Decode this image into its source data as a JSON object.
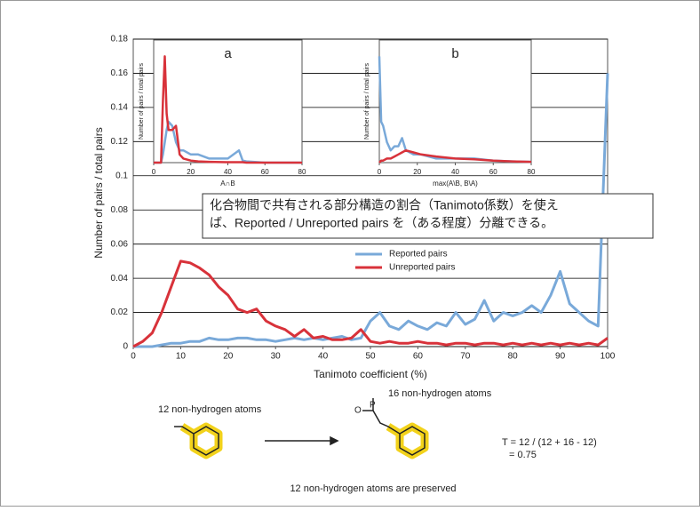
{
  "chart_data": [
    {
      "type": "line",
      "x": [
        0,
        2,
        4,
        6,
        8,
        10,
        12,
        14,
        16,
        18,
        20,
        22,
        24,
        26,
        28,
        30,
        32,
        34,
        36,
        38,
        40,
        42,
        44,
        46,
        48,
        50,
        52,
        54,
        56,
        58,
        60,
        62,
        64,
        66,
        68,
        70,
        72,
        74,
        76,
        78,
        80,
        82,
        84,
        86,
        88,
        90,
        92,
        94,
        96,
        98,
        100
      ],
      "series": [
        {
          "name": "Reported pairs",
          "color": "#79a9d9",
          "values": [
            0,
            0,
            0,
            0.001,
            0.002,
            0.002,
            0.003,
            0.003,
            0.005,
            0.004,
            0.004,
            0.005,
            0.005,
            0.004,
            0.004,
            0.003,
            0.004,
            0.005,
            0.004,
            0.005,
            0.004,
            0.005,
            0.006,
            0.004,
            0.005,
            0.015,
            0.02,
            0.012,
            0.01,
            0.015,
            0.012,
            0.01,
            0.014,
            0.012,
            0.02,
            0.013,
            0.016,
            0.027,
            0.015,
            0.02,
            0.018,
            0.02,
            0.024,
            0.02,
            0.03,
            0.044,
            0.025,
            0.02,
            0.015,
            0.012,
            0.16
          ]
        },
        {
          "name": "Unreported pairs",
          "color": "#d8323a",
          "values": [
            0,
            0.003,
            0.008,
            0.02,
            0.035,
            0.05,
            0.049,
            0.046,
            0.042,
            0.035,
            0.03,
            0.022,
            0.02,
            0.022,
            0.015,
            0.012,
            0.01,
            0.006,
            0.01,
            0.005,
            0.006,
            0.004,
            0.004,
            0.005,
            0.01,
            0.003,
            0.002,
            0.003,
            0.002,
            0.002,
            0.003,
            0.002,
            0.002,
            0.001,
            0.002,
            0.002,
            0.001,
            0.002,
            0.002,
            0.001,
            0.002,
            0.001,
            0.002,
            0.001,
            0.002,
            0.001,
            0.002,
            0.001,
            0.002,
            0.001,
            0.005
          ]
        }
      ],
      "xlim": [
        0,
        100
      ],
      "xticks": [
        0,
        10,
        20,
        30,
        40,
        50,
        60,
        70,
        80,
        90,
        100
      ],
      "ylim": [
        0,
        0.18
      ],
      "yticks": [
        0,
        0.02,
        0.04,
        0.06,
        0.08,
        0.1,
        0.12,
        0.14,
        0.16,
        0.18
      ],
      "xlabel": "Tanimoto coefficient (%)",
      "ylabel": "Number of pairs / total pairs",
      "grid": true,
      "legend": "center",
      "annotation": [
        "化合物間で共有される部分構造の割合（Tanimoto係数）を使え",
        "ば、Reported / Unreported pairs を（ある程度）分離できる。"
      ]
    },
    {
      "type": "line",
      "title": "a",
      "x": [
        0,
        2,
        4,
        5,
        6,
        7,
        8,
        10,
        12,
        14,
        16,
        20,
        24,
        30,
        40,
        46,
        48,
        50,
        60,
        70,
        80
      ],
      "series": [
        {
          "name": "Reported pairs",
          "color": "#79a9d9",
          "values": [
            0,
            0,
            0,
            0.02,
            0.05,
            0.08,
            0.1,
            0.09,
            0.05,
            0.03,
            0.03,
            0.02,
            0.02,
            0.01,
            0.01,
            0.03,
            0.005,
            0.003,
            0,
            0,
            0
          ]
        },
        {
          "name": "Unreported pairs",
          "color": "#d8323a",
          "values": [
            0,
            0,
            0,
            0.15,
            0.26,
            0.12,
            0.08,
            0.08,
            0.09,
            0.02,
            0.01,
            0.005,
            0.003,
            0.002,
            0.001,
            0.001,
            0.001,
            0,
            0,
            0,
            0
          ]
        }
      ],
      "xlim": [
        0,
        80
      ],
      "xticks": [
        0,
        20,
        40,
        60,
        80
      ],
      "ylim": [
        0,
        0.3
      ],
      "xlabel": "A∩B",
      "ylabel": "Number of pairs / total pairs"
    },
    {
      "type": "line",
      "title": "b",
      "x": [
        0,
        1,
        2,
        4,
        6,
        8,
        10,
        12,
        14,
        18,
        22,
        30,
        40,
        50,
        60,
        70,
        80
      ],
      "series": [
        {
          "name": "Reported pairs",
          "color": "#79a9d9",
          "values": [
            0.26,
            0.1,
            0.09,
            0.05,
            0.03,
            0.04,
            0.04,
            0.06,
            0.03,
            0.02,
            0.02,
            0.01,
            0.01,
            0.01,
            0.005,
            0.003,
            0.002
          ]
        },
        {
          "name": "Unreported pairs",
          "color": "#d8323a",
          "values": [
            0,
            0.005,
            0.005,
            0.01,
            0.01,
            0.015,
            0.02,
            0.025,
            0.03,
            0.025,
            0.02,
            0.015,
            0.01,
            0.008,
            0.005,
            0.003,
            0.002
          ]
        }
      ],
      "xlim": [
        0,
        80
      ],
      "xticks": [
        0,
        20,
        40,
        60,
        80
      ],
      "ylim": [
        0,
        0.3
      ],
      "xlabel": "max(A\\B, B\\A)",
      "ylabel": "Number of pairs / total pairs"
    }
  ],
  "diagram": {
    "left_label": "12 non-hydrogen atoms",
    "right_label": "16 non-hydrogen atoms",
    "formula": [
      "T = 12 / (12 + 16 - 12)",
      "= 0.75"
    ],
    "caption": "12 non-hydrogen atoms are preserved",
    "atoms": [
      "O",
      "P"
    ]
  }
}
